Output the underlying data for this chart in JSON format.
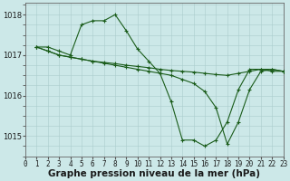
{
  "background_color": "#cce8e8",
  "grid_color": "#aacccc",
  "line_color": "#1a5c1a",
  "xlabel": "Graphe pression niveau de la mer (hPa)",
  "xlabel_fontsize": 7.5,
  "ylabel_ticks": [
    1015,
    1016,
    1017,
    1018
  ],
  "xlim": [
    0,
    23
  ],
  "ylim": [
    1014.5,
    1018.3
  ],
  "series": [
    {
      "x": [
        1,
        2,
        3,
        4,
        5,
        6,
        7,
        8,
        9,
        10,
        11,
        12,
        13,
        14,
        15,
        16,
        17,
        18,
        19,
        20,
        21,
        22,
        23
      ],
      "y": [
        1017.2,
        1017.2,
        1017.1,
        1017.0,
        1017.75,
        1017.85,
        1017.85,
        1018.0,
        1017.6,
        1017.15,
        1016.85,
        1016.55,
        1015.85,
        1014.9,
        1014.9,
        1014.75,
        1014.9,
        1015.35,
        1016.15,
        1016.65,
        1016.65,
        1016.6,
        1016.6
      ]
    },
    {
      "x": [
        1,
        2,
        3,
        4,
        5,
        6,
        7,
        8,
        9,
        10,
        11,
        12,
        13,
        14,
        15,
        16,
        17,
        18,
        19,
        20,
        21,
        22,
        23
      ],
      "y": [
        1017.2,
        1017.1,
        1017.0,
        1016.95,
        1016.9,
        1016.85,
        1016.82,
        1016.79,
        1016.75,
        1016.72,
        1016.69,
        1016.65,
        1016.62,
        1016.6,
        1016.58,
        1016.55,
        1016.52,
        1016.5,
        1016.55,
        1016.6,
        1016.65,
        1016.65,
        1016.6
      ]
    },
    {
      "x": [
        1,
        2,
        3,
        4,
        5,
        6,
        7,
        8,
        9,
        10,
        11,
        12,
        13,
        14,
        15,
        16,
        17,
        18,
        19,
        20,
        21,
        22,
        23
      ],
      "y": [
        1017.2,
        1017.1,
        1017.0,
        1016.95,
        1016.9,
        1016.85,
        1016.8,
        1016.75,
        1016.7,
        1016.65,
        1016.6,
        1016.55,
        1016.5,
        1016.4,
        1016.3,
        1016.1,
        1015.7,
        1014.8,
        1015.35,
        1016.15,
        1016.6,
        1016.65,
        1016.6
      ]
    }
  ],
  "xtick_labels": [
    "0",
    "1",
    "2",
    "3",
    "4",
    "5",
    "6",
    "7",
    "8",
    "9",
    "10",
    "11",
    "12",
    "13",
    "14",
    "15",
    "16",
    "17",
    "18",
    "19",
    "20",
    "21",
    "22",
    "23"
  ],
  "tick_fontsize": 5.5,
  "ytick_fontsize": 6.0
}
